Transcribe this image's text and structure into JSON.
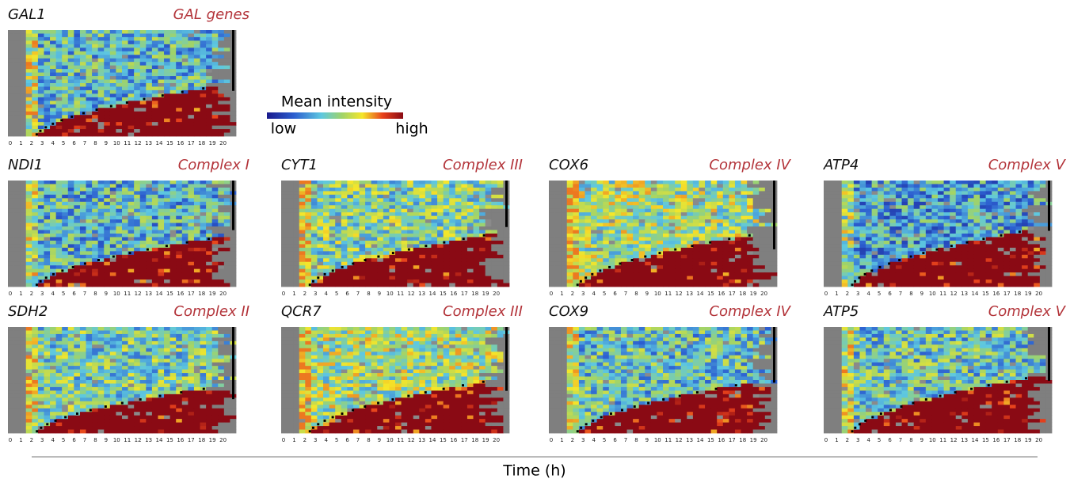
{
  "figure": {
    "colorbar": {
      "title": "Mean intensity",
      "low": "low",
      "high": "high"
    },
    "x_axis_label": "Time (h)",
    "time_ticks": [
      0,
      1,
      2,
      3,
      4,
      5,
      6,
      7,
      8,
      9,
      10,
      11,
      12,
      13,
      14,
      15,
      16,
      17,
      18,
      19,
      20
    ],
    "panels": [
      {
        "gene": "GAL1",
        "group": "GAL genes"
      },
      {
        "gene": "NDI1",
        "group": "Complex I"
      },
      {
        "gene": "CYT1",
        "group": "Complex III"
      },
      {
        "gene": "COX6",
        "group": "Complex IV"
      },
      {
        "gene": "ATP4",
        "group": "Complex V"
      },
      {
        "gene": "SDH2",
        "group": "Complex II"
      },
      {
        "gene": "QCR7",
        "group": "Complex III"
      },
      {
        "gene": "COX9",
        "group": "Complex IV"
      },
      {
        "gene": "ATP5",
        "group": "Complex V"
      }
    ]
  }
}
